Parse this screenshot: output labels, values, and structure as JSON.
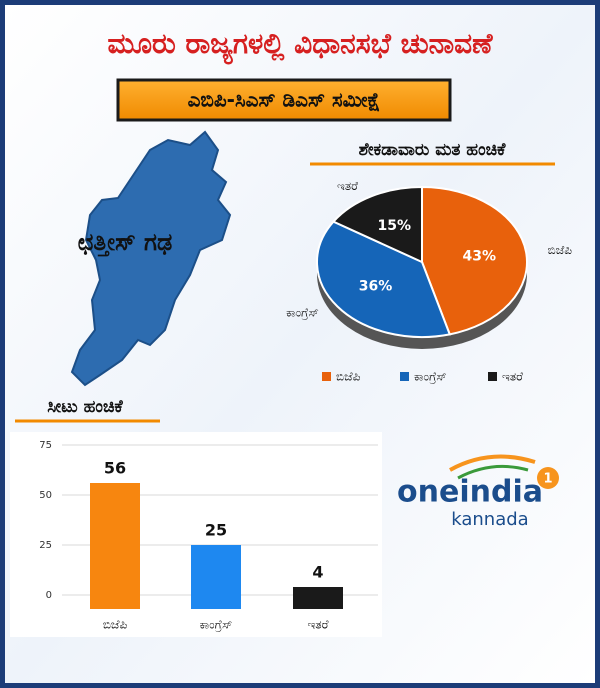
{
  "header": {
    "title": "ಮೂರು ರಾಜ್ಯಗಳಲ್ಲಿ ವಿಧಾನಸಭೆ ಚುನಾವಣೆ",
    "subtitle": "ಎಬಿಪಿ-ಸಿಎಸ್ ಡಿಎಸ್ ಸಮೀಕ್ಷೆ"
  },
  "state": "ಛತ್ತೀಸ್ ಗಢ",
  "logo": {
    "brand": "oneindia",
    "badge": "1",
    "language": "kannada"
  },
  "chart_data": [
    {
      "type": "pie",
      "title": "ಶೇಕಡಾವಾರು ಮತ ಹಂಚಿಕೆ",
      "categories": [
        "ಬಿಜೆಪಿ",
        "ಕಾಂಗ್ರೆಸ್",
        "ಇತರೆ"
      ],
      "values": [
        43,
        36,
        15
      ],
      "value_labels": [
        "43%",
        "36%",
        "15%"
      ],
      "colors": [
        "#e8610c",
        "#1565b8",
        "#1a1a1a"
      ],
      "legend": "bottom"
    },
    {
      "type": "bar",
      "title": "ಸೀಟು ಹಂಚಿಕೆ",
      "categories": [
        "ಬಿಜೆಪಿ",
        "ಕಾಂಗ್ರೆಸ್",
        "ಇತರೆ"
      ],
      "values": [
        56,
        25,
        4
      ],
      "colors": [
        "#f7860f",
        "#1e88f0",
        "#1a1a1a"
      ],
      "ylim": [
        0,
        75
      ],
      "yticks": [
        0,
        25,
        50,
        75
      ],
      "grid": true
    }
  ]
}
